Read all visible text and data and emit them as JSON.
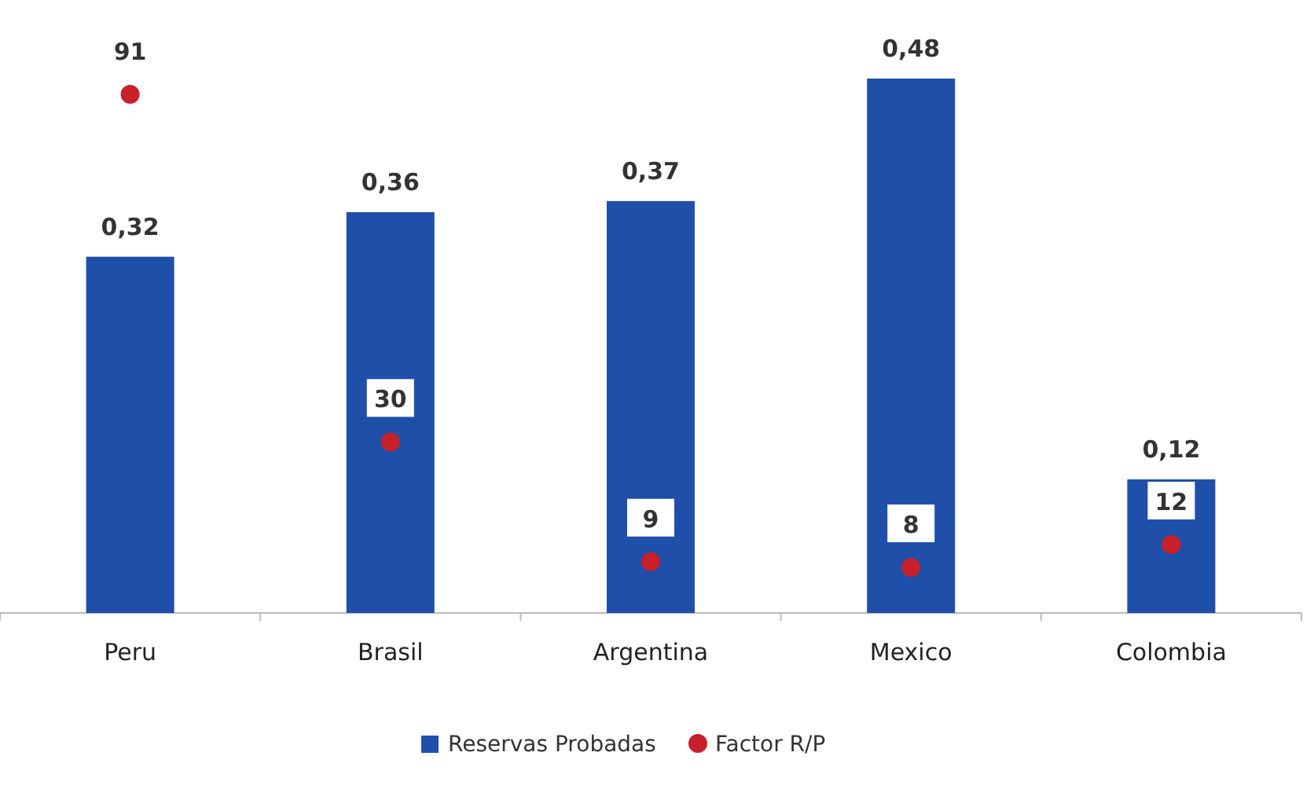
{
  "chart_data": {
    "type": "bar",
    "categories": [
      "Peru",
      "Brasil",
      "Argentina",
      "Mexico",
      "Colombia"
    ],
    "series": [
      {
        "name": "Reservas Probadas",
        "color": "#1f4fa8",
        "values": [
          0.32,
          0.36,
          0.37,
          0.48,
          0.12
        ],
        "value_labels": [
          "0,32",
          "0,36",
          "0,37",
          "0,48",
          "0,12"
        ]
      },
      {
        "name": "Factor R/P",
        "type": "scatter",
        "axis": "y2",
        "color": "#c8202a",
        "values": [
          91,
          30,
          9,
          8,
          12
        ],
        "value_labels": [
          "91",
          "30",
          "9",
          "8",
          "12"
        ]
      }
    ],
    "tick_labels": "x",
    "legend": "bottom",
    "marker": "circle"
  }
}
